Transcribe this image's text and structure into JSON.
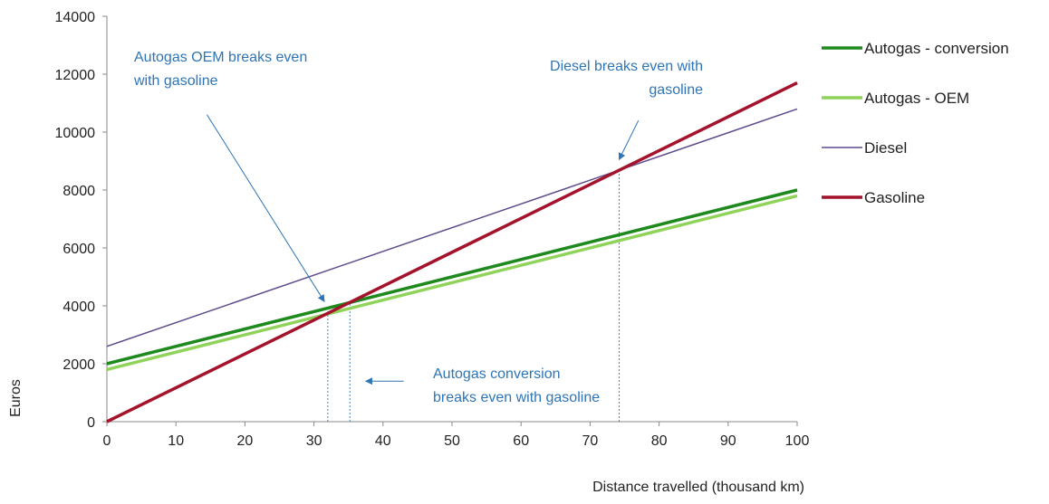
{
  "chart_data": {
    "type": "line",
    "xlabel": "Distance travelled (thousand km)",
    "ylabel": "Euros",
    "xlim": [
      0,
      100
    ],
    "ylim": [
      0,
      14000
    ],
    "xticks": [
      0,
      10,
      20,
      30,
      40,
      50,
      60,
      70,
      80,
      90,
      100
    ],
    "yticks": [
      0,
      2000,
      4000,
      6000,
      8000,
      10000,
      12000,
      14000
    ],
    "grid": false,
    "legend": "right",
    "series": [
      {
        "name": "Autogas - conversion",
        "x": [
          0,
          100
        ],
        "y": [
          2000,
          8000
        ],
        "color": "#1e8a1e",
        "width": "thick"
      },
      {
        "name": "Autogas - OEM",
        "x": [
          0,
          100
        ],
        "y": [
          1800,
          7800
        ],
        "color": "#8fd35a",
        "width": "thick"
      },
      {
        "name": "Diesel",
        "x": [
          0,
          100
        ],
        "y": [
          2600,
          10800
        ],
        "color": "#5e4a8b",
        "width": "thin"
      },
      {
        "name": "Gasoline",
        "x": [
          0,
          100
        ],
        "y": [
          0,
          11700
        ],
        "color": "#a5122b",
        "width": "thick"
      }
    ],
    "break_even_lines": [
      {
        "x": 32,
        "y_from": 0,
        "y_to": 3800
      },
      {
        "x": 35.2,
        "y_from": 0,
        "y_to": 4150
      },
      {
        "x": 74.2,
        "y_from": 0,
        "y_to": 8700
      }
    ],
    "annotations": [
      {
        "lines": [
          "Autogas OEM breaks even",
          "with gasoline"
        ],
        "align": "start",
        "arrow_from": [
          14.5,
          10600
        ],
        "arrow_to": [
          31.5,
          4150
        ]
      },
      {
        "lines": [
          "Diesel breaks even with",
          "gasoline"
        ],
        "align": "end",
        "arrow_from": [
          77,
          10400
        ],
        "arrow_to": [
          74.2,
          9050
        ]
      },
      {
        "lines": [
          "Autogas conversion",
          "breaks even with gasoline"
        ],
        "align": "start",
        "arrow_from": [
          43,
          1400
        ],
        "arrow_to": [
          37.5,
          1400
        ]
      }
    ],
    "annotation_color": "#2e75b6"
  }
}
